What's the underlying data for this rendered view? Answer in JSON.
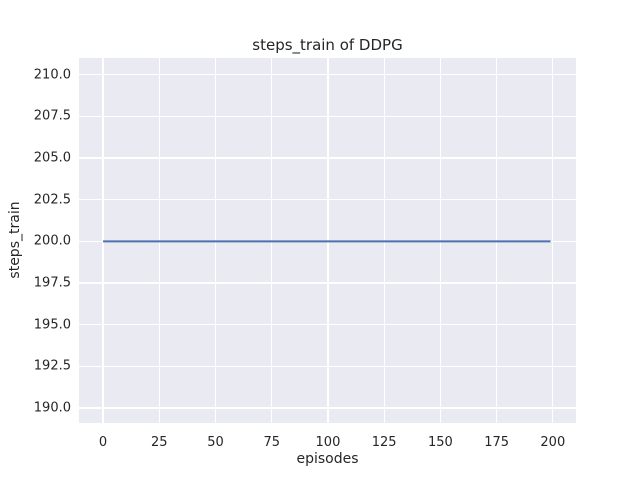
{
  "chart_data": {
    "type": "line",
    "title": "steps_train of DDPG",
    "xlabel": "episodes",
    "ylabel": "steps_train",
    "x_tick_values": [
      0,
      25,
      50,
      75,
      100,
      125,
      150,
      175,
      200
    ],
    "x_tick_labels": [
      "0",
      "25",
      "50",
      "75",
      "100",
      "125",
      "150",
      "175",
      "200"
    ],
    "y_tick_values": [
      210.0,
      207.5,
      205.0,
      202.5,
      200.0,
      197.5,
      195.0,
      192.5,
      190.0
    ],
    "y_tick_labels": [
      "210.0",
      "207.5",
      "205.0",
      "202.5",
      "200.0",
      "197.5",
      "195.0",
      "192.5",
      "190.0"
    ],
    "xlim": [
      -10.7,
      210.3
    ],
    "ylim": [
      189.1,
      211.0
    ],
    "grid": true,
    "legend": "none",
    "series": [
      {
        "name": "steps_train",
        "color": "#4c72b0",
        "line_width": 2,
        "x": [
          0,
          199
        ],
        "y": [
          200,
          200
        ]
      }
    ],
    "style": {
      "plot_bg": "#eaeaf2",
      "grid_color": "#ffffff",
      "text_color": "#262626",
      "figure_bg": "#ffffff"
    }
  }
}
